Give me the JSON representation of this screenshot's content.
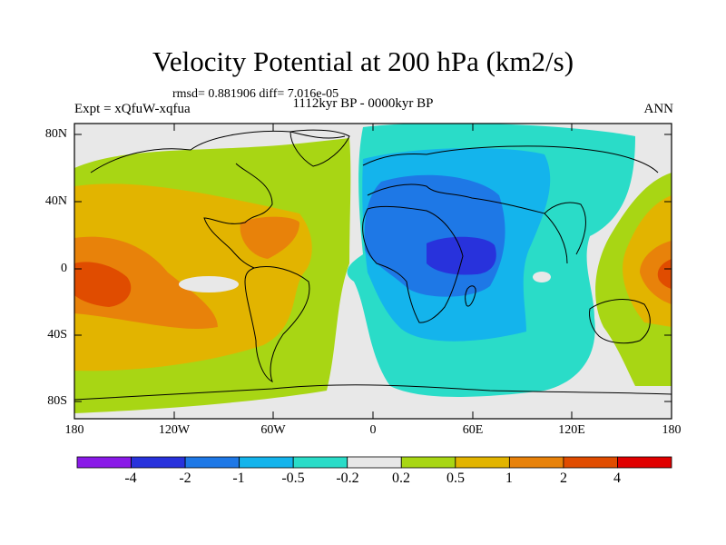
{
  "title": "Velocity Potential at 200 hPa (km2/s)",
  "stats_line": "rmsd= 0.881906 diff= 7.016e-05",
  "period_line": "1112kyr BP - 0000kyr BP",
  "experiment_label": "Expt = xQfuW-xqfua",
  "season_label": "ANN",
  "lat_ticks": [
    "80N",
    "40N",
    "0",
    "40S",
    "80S"
  ],
  "lon_ticks": [
    "180",
    "120W",
    "60W",
    "0",
    "60E",
    "120E",
    "180"
  ],
  "colorbar": {
    "labels": [
      "-4",
      "-2",
      "-1",
      "-0.5",
      "-0.2",
      "0.2",
      "0.5",
      "1",
      "2",
      "4"
    ],
    "colors": [
      "#8a1ae8",
      "#2832dc",
      "#1e78e6",
      "#14b4ec",
      "#2adcc8",
      "#e8e8e8",
      "#a8d614",
      "#e2b400",
      "#e8820a",
      "#e04c00",
      "#e00000"
    ]
  },
  "colors": {
    "background": "#e8e8e8",
    "pos_02": "#a8d614",
    "pos_05": "#e2b400",
    "pos_1": "#e8820a",
    "pos_2": "#e04c00",
    "neg_02": "#2adcc8",
    "neg_05": "#14b4ec",
    "neg_1": "#1e78e6",
    "neg_2": "#2832dc"
  }
}
